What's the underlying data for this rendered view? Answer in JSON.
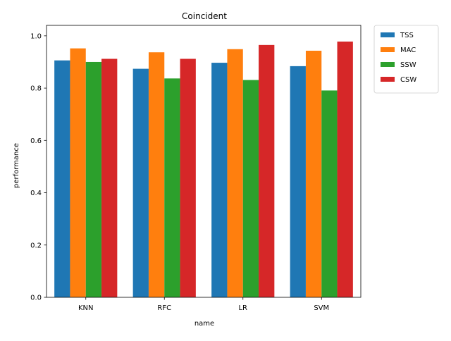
{
  "chart_data": {
    "type": "bar",
    "title": "Coincident",
    "xlabel": "name",
    "ylabel": "performance",
    "categories": [
      "KNN",
      "RFC",
      "LR",
      "SVM"
    ],
    "series": [
      {
        "name": "TSS",
        "color": "#1f77b4",
        "values": [
          0.906,
          0.874,
          0.897,
          0.884
        ]
      },
      {
        "name": "MAC",
        "color": "#ff7f0e",
        "values": [
          0.952,
          0.937,
          0.949,
          0.943
        ]
      },
      {
        "name": "SSW",
        "color": "#2ca02c",
        "values": [
          0.9,
          0.837,
          0.831,
          0.791
        ]
      },
      {
        "name": "CSW",
        "color": "#d62728",
        "values": [
          0.912,
          0.912,
          0.965,
          0.978
        ]
      }
    ],
    "ylim": [
      0,
      1.04
    ],
    "yticks": [
      0.0,
      0.2,
      0.4,
      0.6,
      0.8,
      1.0
    ],
    "ytick_labels": [
      "0.0",
      "0.2",
      "0.4",
      "0.6",
      "0.8",
      "1.0"
    ],
    "grid": false,
    "legend_position": "outside-top-right"
  }
}
